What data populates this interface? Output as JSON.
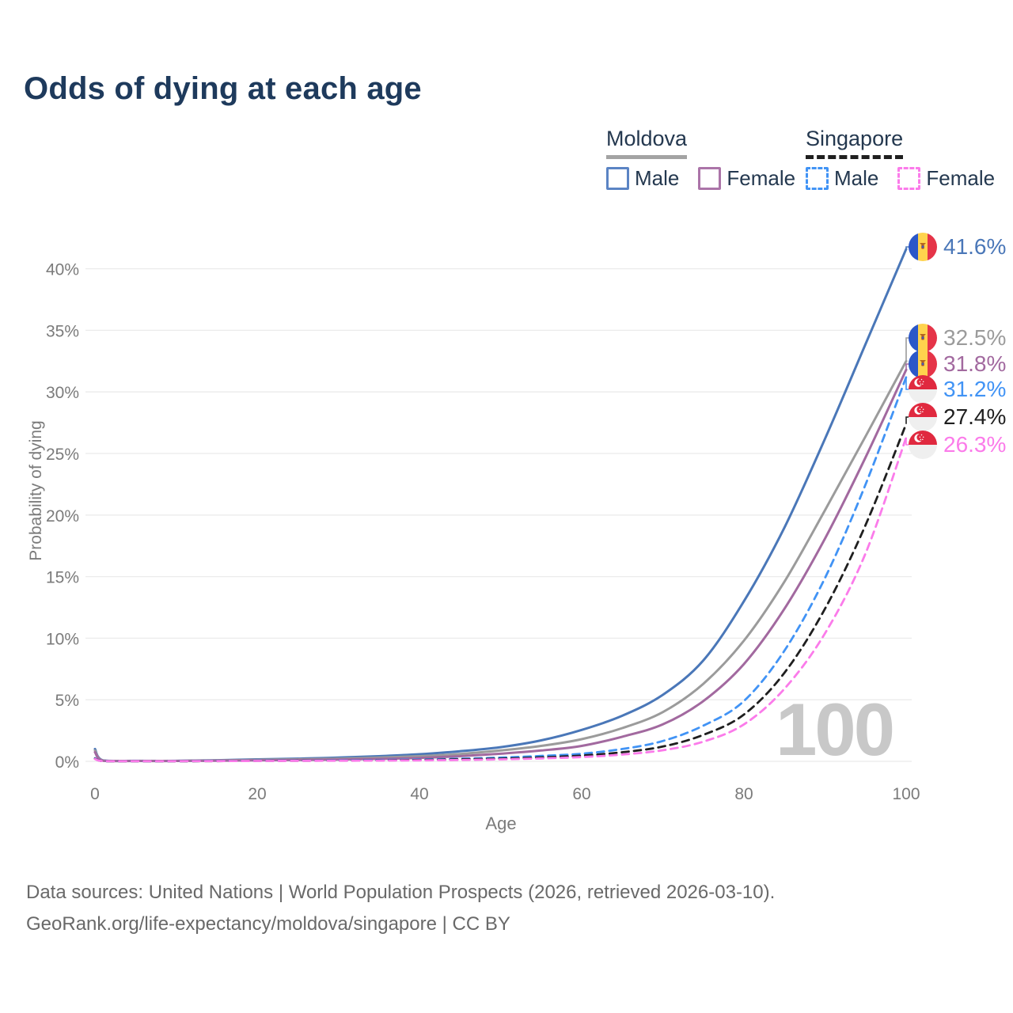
{
  "title": "Odds of dying at each age",
  "legend": {
    "groups": [
      {
        "country": "Moldova",
        "line_style": "solid",
        "underline_color": "#a3a3a3",
        "items": [
          {
            "label": "Male",
            "color": "#5b84c4",
            "dash": false
          },
          {
            "label": "Female",
            "color": "#ab74a8",
            "dash": false
          }
        ]
      },
      {
        "country": "Singapore",
        "line_style": "dashed",
        "underline_color": "#1f1f1f",
        "items": [
          {
            "label": "Male",
            "color": "#4193f5",
            "dash": true
          },
          {
            "label": "Female",
            "color": "#fb7bea",
            "dash": true
          }
        ]
      }
    ]
  },
  "chart_data": {
    "type": "line",
    "title": "Odds of dying at each age",
    "xlabel": "Age",
    "ylabel": "Probability of dying",
    "x_ticks": [
      0,
      20,
      40,
      60,
      80,
      100
    ],
    "y_ticks": [
      "0%",
      "5%",
      "10%",
      "15%",
      "20%",
      "25%",
      "30%",
      "35%",
      "40%"
    ],
    "y_tick_values": [
      0,
      5,
      10,
      15,
      20,
      25,
      30,
      35,
      40
    ],
    "xlim": [
      0,
      100
    ],
    "ylim_percent": [
      0,
      41.6
    ],
    "grid": "horizontal-only",
    "legend_position": "top-right",
    "hover_age_watermark": "100",
    "x": [
      0,
      1,
      5,
      10,
      15,
      20,
      25,
      30,
      35,
      40,
      45,
      50,
      55,
      60,
      65,
      70,
      75,
      80,
      85,
      90,
      95,
      100
    ],
    "series": [
      {
        "name": "Moldova Male",
        "country": "Moldova",
        "sex": "Male",
        "flag": "md",
        "color": "#4a77b8",
        "dash": false,
        "end_label": "41.6%",
        "end_value": 41.6,
        "values": [
          1.0,
          0.07,
          0.04,
          0.04,
          0.09,
          0.16,
          0.22,
          0.3,
          0.42,
          0.58,
          0.82,
          1.15,
          1.7,
          2.55,
          3.7,
          5.4,
          8.2,
          13.0,
          19.0,
          26.2,
          33.9,
          41.6
        ]
      },
      {
        "name": "Moldova Both sexes",
        "country": "Moldova",
        "sex": "Both",
        "flag": "md",
        "color": "#9b9b9b",
        "dash": false,
        "end_label": "32.5%",
        "end_value": 32.5,
        "values": [
          0.88,
          0.06,
          0.03,
          0.03,
          0.07,
          0.12,
          0.16,
          0.22,
          0.3,
          0.42,
          0.6,
          0.88,
          1.25,
          1.8,
          2.7,
          4.0,
          6.3,
          9.8,
          14.6,
          20.4,
          26.4,
          32.5
        ]
      },
      {
        "name": "Moldova Female",
        "country": "Moldova",
        "sex": "Female",
        "flag": "md",
        "color": "#a2699f",
        "dash": false,
        "end_label": "31.8%",
        "end_value": 31.8,
        "values": [
          0.74,
          0.05,
          0.03,
          0.03,
          0.05,
          0.08,
          0.11,
          0.15,
          0.2,
          0.28,
          0.42,
          0.62,
          0.88,
          1.25,
          2.0,
          3.0,
          4.9,
          7.9,
          12.4,
          18.1,
          24.7,
          31.8
        ]
      },
      {
        "name": "Singapore Male",
        "country": "Singapore",
        "sex": "Male",
        "flag": "sg",
        "color": "#4193f5",
        "dash": true,
        "end_label": "31.2%",
        "end_value": 31.2,
        "values": [
          0.25,
          0.02,
          0.01,
          0.01,
          0.03,
          0.05,
          0.06,
          0.08,
          0.11,
          0.15,
          0.21,
          0.3,
          0.44,
          0.62,
          1.0,
          1.65,
          2.9,
          4.9,
          9.0,
          14.9,
          22.5,
          31.2
        ]
      },
      {
        "name": "Singapore Both sexes",
        "country": "Singapore",
        "sex": "Both",
        "flag": "sg",
        "color": "#1f1f1f",
        "dash": true,
        "end_label": "27.4%",
        "end_value": 27.4,
        "values": [
          0.22,
          0.02,
          0.01,
          0.01,
          0.02,
          0.04,
          0.05,
          0.06,
          0.08,
          0.11,
          0.16,
          0.22,
          0.32,
          0.47,
          0.74,
          1.2,
          2.15,
          3.8,
          7.2,
          12.4,
          19.2,
          27.4
        ]
      },
      {
        "name": "Singapore Female",
        "country": "Singapore",
        "sex": "Female",
        "flag": "sg",
        "color": "#fb7bea",
        "dash": true,
        "end_label": "26.3%",
        "end_value": 26.3,
        "values": [
          0.19,
          0.02,
          0.01,
          0.01,
          0.02,
          0.03,
          0.04,
          0.05,
          0.06,
          0.08,
          0.11,
          0.16,
          0.24,
          0.35,
          0.55,
          0.9,
          1.6,
          3.0,
          5.9,
          10.4,
          16.9,
          26.3
        ]
      }
    ]
  },
  "watermark": "100",
  "footer": {
    "line1": "Data sources: United Nations | World Population Prospects (2026, retrieved 2026-03-10).",
    "line2": "GeoRank.org/life-expectancy/moldova/singapore | CC BY"
  }
}
